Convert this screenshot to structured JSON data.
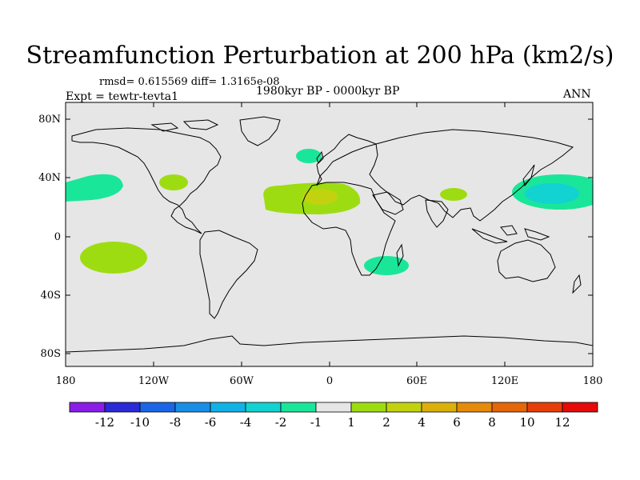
{
  "title": "Streamfunction Perturbation at 200 hPa (km2/s)",
  "stats": "rmsd= 0.615569 diff= 1.3165e-08",
  "period": "1980kyr BP - 0000kyr BP",
  "experiment": "Expt = tewtr-tevta1",
  "season": "ANN",
  "lat_labels": [
    "80N",
    "40N",
    "0",
    "40S",
    "80S"
  ],
  "lon_labels": [
    "180",
    "120W",
    "60W",
    "0",
    "60E",
    "120E",
    "180"
  ],
  "colorbar": {
    "labels": [
      "-12",
      "-10",
      "-8",
      "-6",
      "-4",
      "-2",
      "-1",
      "1",
      "2",
      "4",
      "6",
      "8",
      "10",
      "12"
    ],
    "colors": [
      "#8a1ee6",
      "#2a2ad6",
      "#1a66e6",
      "#1a8ee6",
      "#12b2e6",
      "#12d2d2",
      "#1ae69a",
      "#e6e6e6",
      "#9edc12",
      "#c2d20e",
      "#dcb00a",
      "#e68a0a",
      "#e6660a",
      "#e63e0a",
      "#e60a0a"
    ]
  },
  "anomalies": [
    {
      "name": "north-pacific-west-low",
      "lon": 150,
      "lat": 29,
      "value": -3
    },
    {
      "name": "north-pacific-east-low",
      "lon": -160,
      "lat": 33,
      "value": -1.5
    },
    {
      "name": "north-atlantic-low",
      "lon": 0,
      "lat": 56,
      "value": -1.5
    },
    {
      "name": "south-africa-low",
      "lon": 40,
      "lat": -23,
      "value": -1.5
    },
    {
      "name": "north-america-high",
      "lon": -105,
      "lat": 37,
      "value": 1.5
    },
    {
      "name": "sahara-high",
      "lon": -5,
      "lat": 28,
      "value": 3
    },
    {
      "name": "south-asia-high",
      "lon": 83,
      "lat": 29,
      "value": 1.5
    },
    {
      "name": "south-pacific-high",
      "lon": -158,
      "lat": -15,
      "value": 1.5
    }
  ]
}
